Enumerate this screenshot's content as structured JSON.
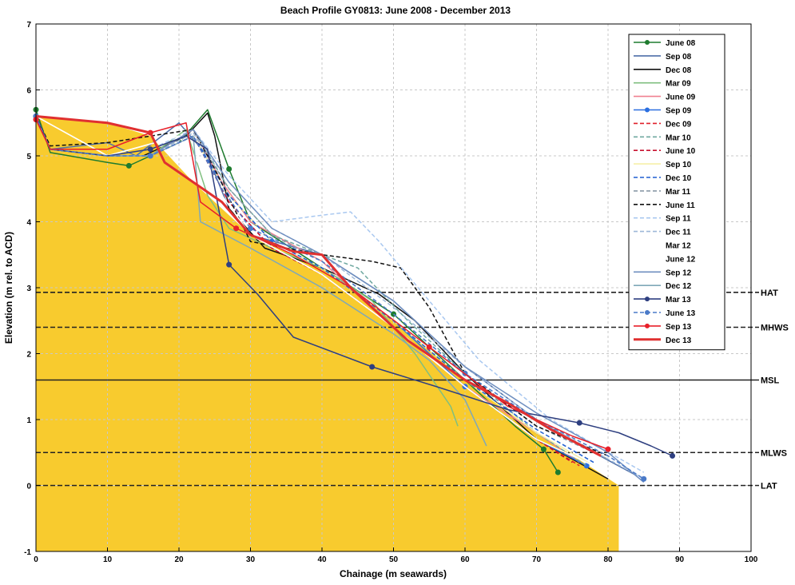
{
  "chart_data": {
    "type": "line",
    "title": "Beach Profile GY0813: June 2008 - December 2013",
    "xlabel": "Chainage (m seawards)",
    "ylabel": "Elevation (m rel. to ACD)",
    "xlim": [
      0,
      100
    ],
    "ylim": [
      -1,
      7
    ],
    "xticks": [
      0,
      10,
      20,
      30,
      40,
      50,
      60,
      70,
      80,
      90,
      100
    ],
    "yticks": [
      -1,
      0,
      1,
      2,
      3,
      4,
      5,
      6,
      7
    ],
    "grid": true,
    "legend_position": "top-right",
    "fill_area": {
      "color": "#F8CB2E",
      "x": [
        0,
        10,
        16,
        22,
        30,
        40,
        50,
        60,
        70,
        78,
        81.5
      ],
      "y": [
        5.6,
        5.5,
        5.3,
        4.6,
        3.8,
        3.3,
        2.5,
        1.6,
        0.8,
        0.25,
        0
      ]
    },
    "reference_lines": [
      {
        "label": "HAT",
        "y": 2.93,
        "style": "dashed"
      },
      {
        "label": "MHWS",
        "y": 2.4,
        "style": "dashed"
      },
      {
        "label": "MSL",
        "y": 1.6,
        "style": "solid"
      },
      {
        "label": "MLWS",
        "y": 0.5,
        "style": "dashed"
      },
      {
        "label": "LAT",
        "y": 0,
        "style": "dashed"
      }
    ],
    "series": [
      {
        "name": "June 08",
        "color": "#1E7B2E",
        "dash": "solid",
        "marker": true,
        "x": [
          0,
          2,
          10,
          13,
          20,
          24,
          27,
          30,
          40,
          50,
          60,
          67,
          71,
          73
        ],
        "y": [
          5.7,
          5.05,
          4.9,
          4.85,
          5.2,
          5.7,
          4.8,
          4.0,
          3.3,
          2.6,
          1.6,
          0.9,
          0.55,
          0.2
        ]
      },
      {
        "name": "Sep 08",
        "color": "#4F6FA8",
        "dash": "solid",
        "x": [
          0,
          2,
          10,
          14,
          20,
          24,
          27,
          30,
          40,
          50,
          60,
          70,
          78,
          84
        ],
        "y": [
          5.6,
          5.1,
          5.2,
          5.0,
          5.5,
          5.0,
          4.2,
          3.8,
          3.5,
          2.8,
          1.8,
          1.0,
          0.5,
          0.15
        ]
      },
      {
        "name": "Dec 08",
        "color": "#111111",
        "dash": "solid",
        "x": [
          0,
          2,
          10,
          15,
          21,
          24,
          25,
          27,
          32,
          40,
          48,
          53,
          60,
          70,
          80
        ],
        "y": [
          5.6,
          5.1,
          5.0,
          5.0,
          5.3,
          5.65,
          5.3,
          4.2,
          3.6,
          3.3,
          2.9,
          2.5,
          1.7,
          0.7,
          0.1
        ]
      },
      {
        "name": "Mar 09",
        "color": "#7FBF7F",
        "dash": "solid",
        "x": [
          0,
          2,
          10,
          16,
          21,
          24,
          27,
          33,
          40,
          47,
          53,
          58,
          59
        ],
        "y": [
          5.55,
          5.1,
          5.0,
          5.0,
          5.4,
          4.4,
          3.9,
          3.6,
          3.3,
          2.8,
          2.0,
          1.2,
          0.9
        ]
      },
      {
        "name": "June 09",
        "color": "#F08090",
        "dash": "solid",
        "x": [
          0,
          2,
          10,
          16,
          22,
          26,
          30,
          40,
          50,
          60,
          70,
          76
        ],
        "y": [
          5.6,
          5.1,
          5.0,
          5.0,
          5.4,
          4.6,
          4.0,
          3.4,
          2.4,
          1.5,
          0.8,
          0.35
        ]
      },
      {
        "name": "Sep 09",
        "color": "#2B6FE0",
        "dash": "solid",
        "marker": "triangle",
        "x": [
          0,
          2,
          10,
          16,
          22,
          27,
          33,
          40,
          50,
          60,
          70,
          77
        ],
        "y": [
          5.6,
          5.1,
          5.0,
          5.0,
          5.3,
          4.4,
          3.7,
          3.3,
          2.5,
          1.5,
          0.7,
          0.3
        ]
      },
      {
        "name": "Dec 09",
        "color": "#E0202A",
        "dash": "dashed",
        "x": [
          0,
          2,
          10,
          16,
          22,
          27,
          33,
          40,
          50,
          60,
          70,
          76
        ],
        "y": [
          5.6,
          5.1,
          5.0,
          5.0,
          5.3,
          4.3,
          3.6,
          3.2,
          2.4,
          1.5,
          0.7,
          0.3
        ]
      },
      {
        "name": "Mar 10",
        "color": "#6FA8A0",
        "dash": "dashed",
        "x": [
          0,
          2,
          10,
          16,
          22,
          27,
          33,
          40,
          45,
          52,
          60,
          70,
          77
        ],
        "y": [
          5.6,
          5.1,
          5.0,
          5.0,
          5.4,
          4.5,
          3.8,
          3.5,
          3.3,
          2.5,
          1.7,
          0.8,
          0.3
        ]
      },
      {
        "name": "June 10",
        "color": "#C8102E",
        "dash": "dashed",
        "x": [
          0,
          2,
          10,
          16,
          22,
          27,
          33,
          40,
          50,
          60,
          70,
          75
        ],
        "y": [
          5.6,
          5.1,
          5.0,
          5.0,
          5.3,
          4.3,
          3.6,
          3.2,
          2.4,
          1.5,
          0.7,
          0.35
        ]
      },
      {
        "name": "Sep 10",
        "color": "#F6EFA8",
        "dash": "solid",
        "x": [
          0,
          2,
          10,
          16,
          22,
          27,
          33,
          40,
          50,
          60,
          70,
          78
        ],
        "y": [
          5.6,
          5.1,
          5.0,
          5.0,
          5.3,
          4.4,
          3.7,
          3.3,
          2.5,
          1.6,
          0.8,
          0.3
        ]
      },
      {
        "name": "Dec 10",
        "color": "#1E5FD0",
        "dash": "dashed",
        "x": [
          0,
          2,
          10,
          16,
          22,
          27,
          33,
          40,
          50,
          60,
          70,
          78
        ],
        "y": [
          5.6,
          5.1,
          5.0,
          5.0,
          5.3,
          4.4,
          3.7,
          3.3,
          2.5,
          1.6,
          0.85,
          0.35
        ]
      },
      {
        "name": "Mar 11",
        "color": "#8A9AA8",
        "dash": "dashed",
        "x": [
          0,
          2,
          10,
          16,
          22,
          27,
          33,
          40,
          50,
          60,
          70,
          80
        ],
        "y": [
          5.6,
          5.1,
          5.0,
          5.0,
          5.35,
          4.5,
          3.8,
          3.4,
          2.6,
          1.7,
          0.9,
          0.4
        ]
      },
      {
        "name": "June 11",
        "color": "#111111",
        "dash": "dashed",
        "x": [
          0,
          2,
          10,
          16,
          22,
          25,
          30,
          40,
          47,
          51,
          55,
          60,
          70,
          80
        ],
        "y": [
          5.6,
          5.15,
          5.2,
          5.3,
          5.4,
          4.8,
          3.7,
          3.5,
          3.4,
          3.3,
          2.7,
          1.7,
          0.9,
          0.45
        ]
      },
      {
        "name": "Sep 11",
        "color": "#A9C8F0",
        "dash": "dashed",
        "x": [
          0,
          2,
          10,
          16,
          22,
          27,
          33,
          40,
          44,
          48,
          55,
          62,
          72,
          85
        ],
        "y": [
          5.6,
          5.1,
          5.0,
          5.1,
          5.4,
          4.7,
          4.0,
          4.1,
          4.15,
          3.7,
          2.8,
          1.9,
          1.0,
          0.2
        ]
      },
      {
        "name": "Dec 11",
        "color": "#9DB8D8",
        "dash": "dashed",
        "x": [
          0,
          2,
          10,
          16,
          22,
          27,
          33,
          40,
          50,
          60,
          70,
          85
        ],
        "y": [
          5.6,
          5.1,
          5.0,
          5.0,
          5.35,
          4.6,
          3.9,
          3.5,
          2.7,
          1.8,
          1.0,
          0.1
        ]
      },
      {
        "name": "Mar 12",
        "color": "#FFFFFF",
        "dash": "solid",
        "x": [
          0,
          10,
          20,
          30,
          40,
          50,
          60,
          70,
          80
        ],
        "y": [
          5.6,
          5.0,
          5.3,
          3.8,
          3.2,
          2.4,
          1.5,
          0.7,
          0.2
        ]
      },
      {
        "name": "June 12",
        "color": "#FFFFFF",
        "dash": "solid",
        "x": [
          0,
          10,
          20,
          30,
          40,
          50,
          60,
          70,
          80
        ],
        "y": [
          5.6,
          5.0,
          5.3,
          3.8,
          3.2,
          2.4,
          1.5,
          0.7,
          0.2
        ]
      },
      {
        "name": "Sep 12",
        "color": "#6F8FC0",
        "dash": "solid",
        "x": [
          0,
          2,
          10,
          16,
          22,
          27,
          33,
          40,
          50,
          60,
          70,
          80,
          85
        ],
        "y": [
          5.6,
          5.1,
          5.0,
          5.0,
          5.4,
          4.6,
          3.9,
          3.5,
          2.8,
          1.8,
          1.1,
          0.5,
          0.05
        ]
      },
      {
        "name": "Dec 12",
        "color": "#7FA8B8",
        "dash": "solid",
        "x": [
          0,
          2,
          10,
          16,
          22,
          23,
          30,
          40,
          50,
          55,
          60,
          63
        ],
        "y": [
          5.6,
          5.1,
          5.0,
          5.0,
          5.3,
          4.0,
          3.6,
          3.0,
          2.3,
          1.9,
          1.3,
          0.6
        ]
      },
      {
        "name": "Mar 13",
        "color": "#2E3F80",
        "dash": "solid",
        "marker": true,
        "x": [
          0,
          2,
          10,
          16,
          21,
          24,
          27,
          31,
          36,
          47,
          56,
          66,
          76,
          81.5,
          86,
          89
        ],
        "y": [
          5.6,
          5.1,
          5.0,
          5.1,
          5.3,
          5.1,
          3.35,
          2.9,
          2.25,
          1.8,
          1.5,
          1.15,
          0.95,
          0.8,
          0.6,
          0.45
        ]
      },
      {
        "name": "June 13",
        "color": "#4A7AC8",
        "dash": "dashed",
        "marker": true,
        "x": [
          0,
          2,
          10,
          16,
          22,
          26,
          30,
          40,
          50,
          60,
          70,
          80,
          85
        ],
        "y": [
          5.6,
          5.1,
          5.0,
          5.0,
          5.3,
          4.5,
          3.9,
          3.4,
          2.6,
          1.7,
          1.0,
          0.45,
          0.1
        ]
      },
      {
        "name": "Sep 13",
        "color": "#E8202A",
        "dash": "solid",
        "marker": true,
        "x": [
          0,
          2,
          10,
          16,
          21,
          23,
          28,
          36,
          44,
          55,
          66,
          75,
          80
        ],
        "y": [
          5.55,
          5.1,
          5.1,
          5.35,
          5.5,
          4.3,
          3.9,
          3.5,
          3.0,
          2.1,
          1.2,
          0.75,
          0.55
        ]
      },
      {
        "name": "Dec 13",
        "color": "#E03030",
        "dash": "solid",
        "bold": true,
        "x": [
          0,
          10,
          16,
          18,
          22,
          26,
          30,
          36,
          40,
          44,
          52,
          60,
          66,
          72,
          79
        ],
        "y": [
          5.6,
          5.5,
          5.35,
          4.9,
          4.6,
          4.3,
          3.8,
          3.55,
          3.5,
          3.0,
          2.2,
          1.6,
          1.25,
          0.85,
          0.45
        ]
      }
    ]
  }
}
